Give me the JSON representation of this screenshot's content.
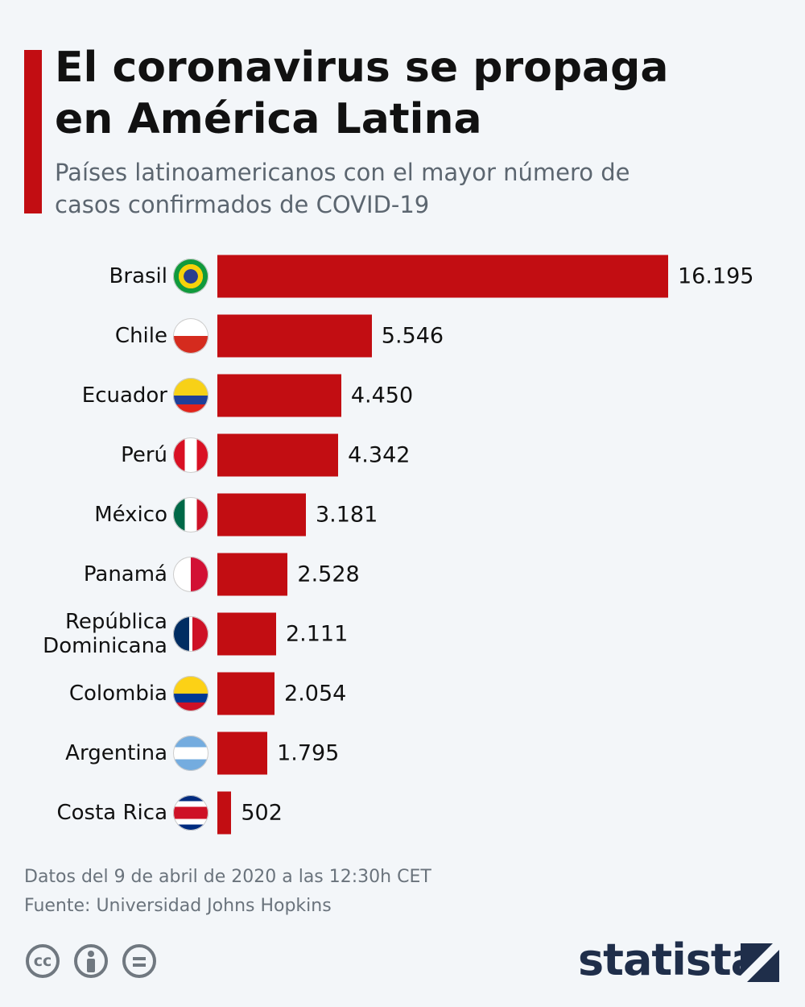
{
  "chart_data": {
    "type": "bar",
    "orientation": "horizontal",
    "title": "El coronavirus se propaga en América Latina",
    "subtitle": "Países latinoamericanos con el mayor número de casos confirmados de COVID-19",
    "categories": [
      "Brasil",
      "Chile",
      "Ecuador",
      "Perú",
      "México",
      "Panamá",
      "República Dominicana",
      "Colombia",
      "Argentina",
      "Costa Rica"
    ],
    "values": [
      16195,
      5546,
      4450,
      4342,
      3181,
      2528,
      2111,
      2054,
      1795,
      502
    ],
    "value_labels": [
      "16.195",
      "5.546",
      "4.450",
      "4.342",
      "3.181",
      "2.528",
      "2.111",
      "2.054",
      "1.795",
      "502"
    ],
    "color": "#c20d12",
    "notes": [
      "Datos del 9 de abril de 2020 a las 12:30h CET",
      "Fuente: Universidad Johns Hopkins"
    ]
  },
  "footer": {
    "license": "cc",
    "brand": "statista"
  }
}
